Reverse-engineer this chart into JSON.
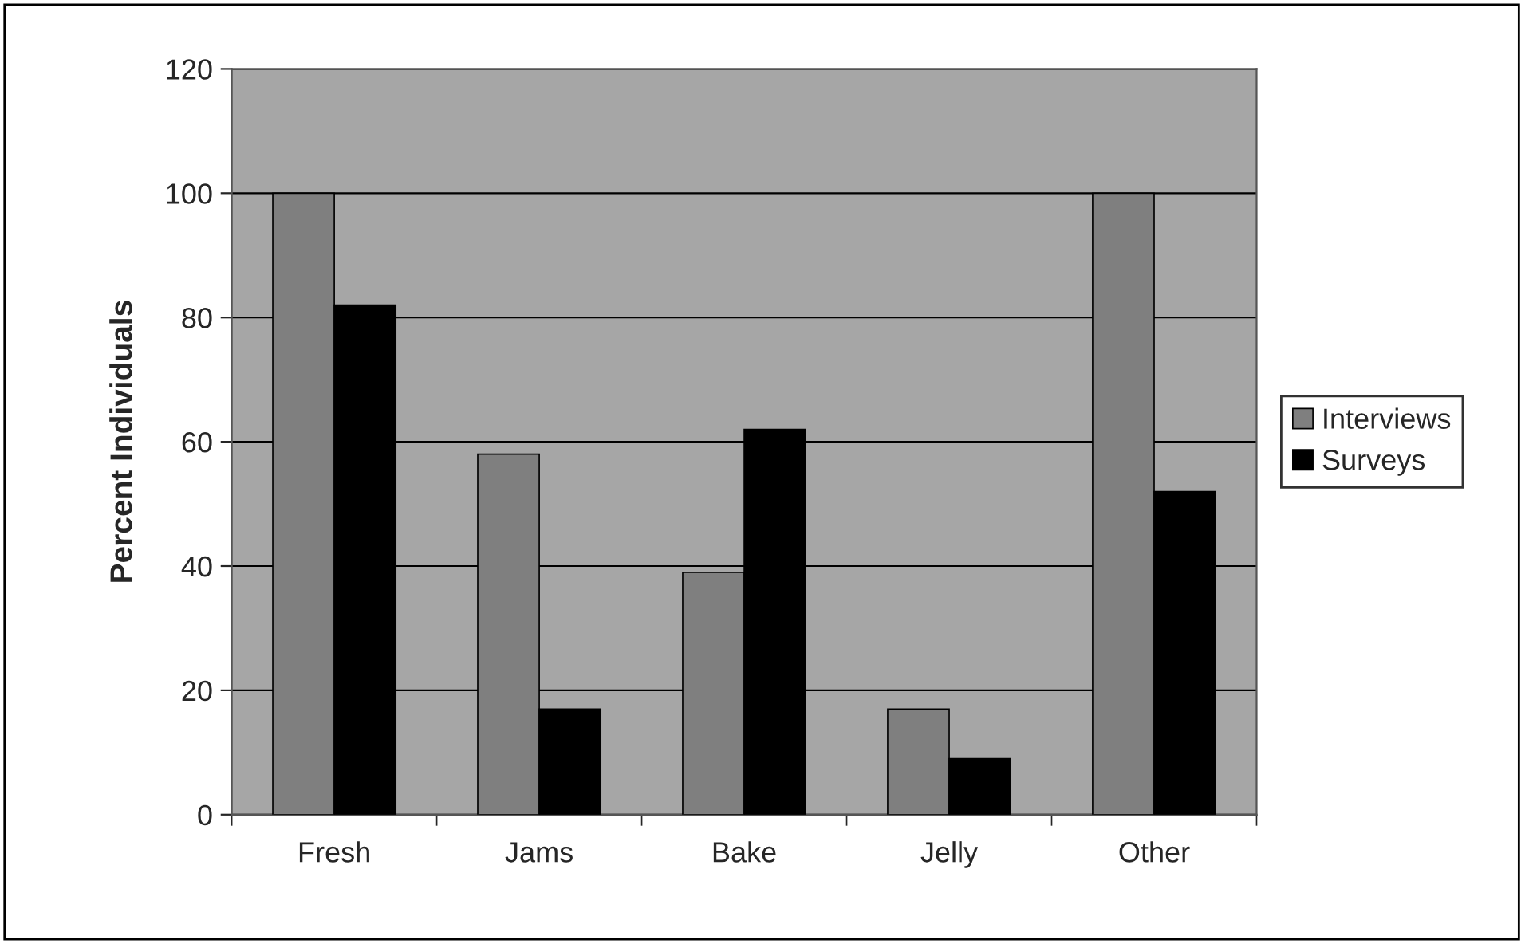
{
  "chart_data": {
    "type": "bar",
    "ylabel": "Percent Individuals",
    "categories": [
      "Fresh",
      "Jams",
      "Bake",
      "Jelly",
      "Other"
    ],
    "series": [
      {
        "name": "Interviews",
        "color": "#7f7f7f",
        "values": [
          100,
          58,
          39,
          17,
          100
        ]
      },
      {
        "name": "Surveys",
        "color": "#000000",
        "values": [
          82,
          17,
          62,
          9,
          52
        ]
      }
    ],
    "ylim": [
      0,
      120
    ],
    "yticks": [
      0,
      20,
      40,
      60,
      80,
      100,
      120
    ],
    "grid": "y",
    "legend": "right"
  }
}
